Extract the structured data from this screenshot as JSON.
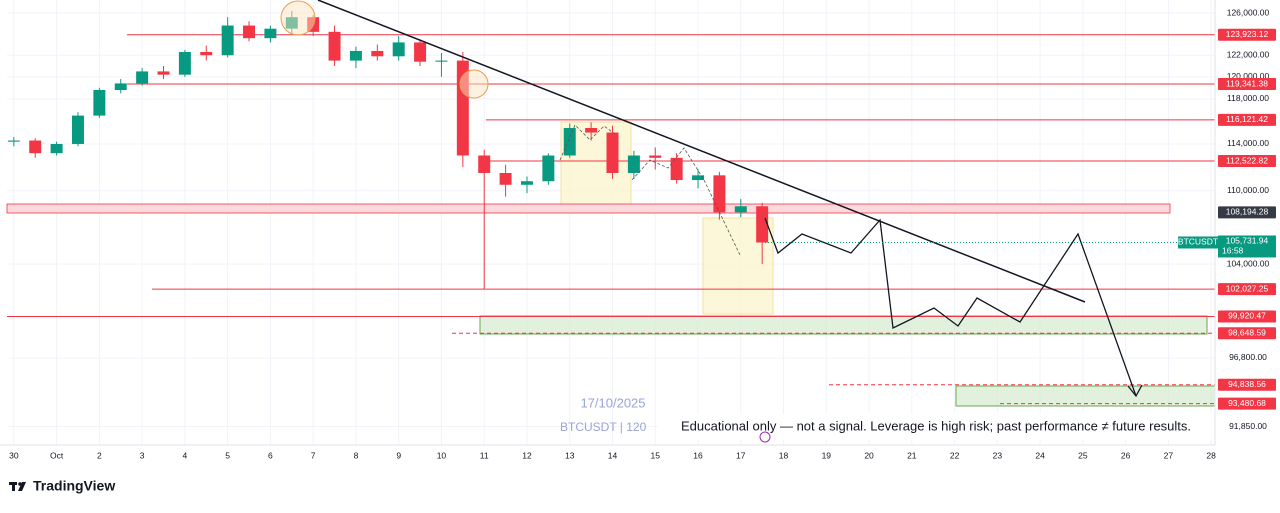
{
  "chart_data": {
    "type": "candlestick",
    "log_scale": true,
    "grid": true,
    "up_color": "#089981",
    "down_color": "#f23645",
    "xlim": [
      -0.16,
      28.09
    ],
    "ylim": [
      90570,
      127260
    ],
    "xticks": [
      {
        "value": 0,
        "label": "30"
      },
      {
        "value": 1,
        "label": "Oct"
      },
      2,
      3,
      4,
      5,
      6,
      7,
      8,
      9,
      10,
      11,
      12,
      13,
      14,
      15,
      16,
      17,
      18,
      19,
      20,
      21,
      22,
      23,
      24,
      25,
      26,
      27,
      28
    ],
    "yticks": [
      {
        "value": 126000,
        "label": "126,000.00"
      },
      {
        "value": 122000,
        "label": "122,000.00"
      },
      {
        "value": 120000,
        "label": "120,000.00"
      },
      {
        "value": 118000,
        "label": "118,000.00"
      },
      {
        "value": 114000,
        "label": "114,000.00"
      },
      {
        "value": 110000,
        "label": "110,000.00"
      },
      {
        "value": 104000,
        "label": "104,000.00"
      },
      {
        "value": 96800,
        "label": "96,800.00"
      },
      {
        "value": 91850,
        "label": "91,850.00"
      }
    ],
    "candles": {
      "x": [
        0,
        0.5,
        1,
        1.5,
        2,
        2.5,
        3,
        3.5,
        4,
        4.5,
        5,
        5.5,
        6,
        6.5,
        7,
        7.5,
        8,
        8.5,
        9,
        9.5,
        10,
        10.5,
        11,
        11.5,
        12,
        12.5,
        13,
        13.5,
        14,
        14.5,
        15,
        15.5,
        16,
        16.5,
        17,
        17.5
      ],
      "open": [
        114200,
        114300,
        113200,
        114000,
        116500,
        118800,
        119400,
        120500,
        120200,
        122300,
        122000,
        124800,
        123600,
        124500,
        125600,
        124200,
        121500,
        122400,
        121900,
        123200,
        121400,
        121500,
        113000,
        111500,
        110500,
        110800,
        113000,
        115400,
        115000,
        111500,
        113000,
        112800,
        110900,
        111300,
        108200,
        108700
      ],
      "high": [
        114600,
        114500,
        114200,
        116800,
        119000,
        119800,
        120800,
        121000,
        122500,
        122900,
        125600,
        125200,
        124800,
        126200,
        125800,
        124800,
        122800,
        123000,
        123800,
        123500,
        122200,
        122300,
        113500,
        112200,
        111200,
        113200,
        115800,
        115900,
        115600,
        113400,
        113700,
        113200,
        111800,
        111600,
        109300,
        109000
      ],
      "low": [
        113800,
        112800,
        113000,
        113800,
        116300,
        118500,
        119200,
        119800,
        120000,
        121500,
        121800,
        123300,
        123200,
        124000,
        123800,
        121000,
        120800,
        121500,
        121500,
        121000,
        120000,
        112000,
        102000,
        109500,
        109800,
        110500,
        112800,
        114300,
        111000,
        111000,
        111800,
        110600,
        110200,
        107600,
        107800,
        104000
      ],
      "close": [
        114300,
        113200,
        114000,
        116500,
        118800,
        119400,
        120500,
        120200,
        122300,
        122000,
        124800,
        123600,
        124500,
        125600,
        124200,
        121500,
        122400,
        121900,
        123200,
        121400,
        121500,
        113000,
        111500,
        110500,
        110800,
        113000,
        115400,
        115000,
        111500,
        113000,
        112800,
        110900,
        111300,
        108200,
        108700,
        105731.94
      ]
    },
    "price_levels": {
      "values": [
        123923.12,
        119341.38,
        116121.42,
        112522.82,
        108194.28,
        102027.25,
        99920.47,
        98648.59,
        94838.56,
        93480.68
      ],
      "value_labels": [
        "123,923.12",
        "119,341.38",
        "116,121.42",
        "112,522.82",
        "108,194.28",
        "102,027.25",
        "99,920.47",
        "98,648.59",
        "94,838.56",
        "93,480.68"
      ]
    },
    "last_price": {
      "symbol": "BTCUSDT",
      "value": 105731.94,
      "label": "105,731.94",
      "countdown": "16:58"
    },
    "watermark": {
      "date": "17/10/2025",
      "symbol": "BTCUSDT | 120"
    },
    "annotation": "Educational only — not a signal. Leverage is high risk; past performance ≠ future results."
  },
  "footer": {
    "brand": "TradingView"
  }
}
